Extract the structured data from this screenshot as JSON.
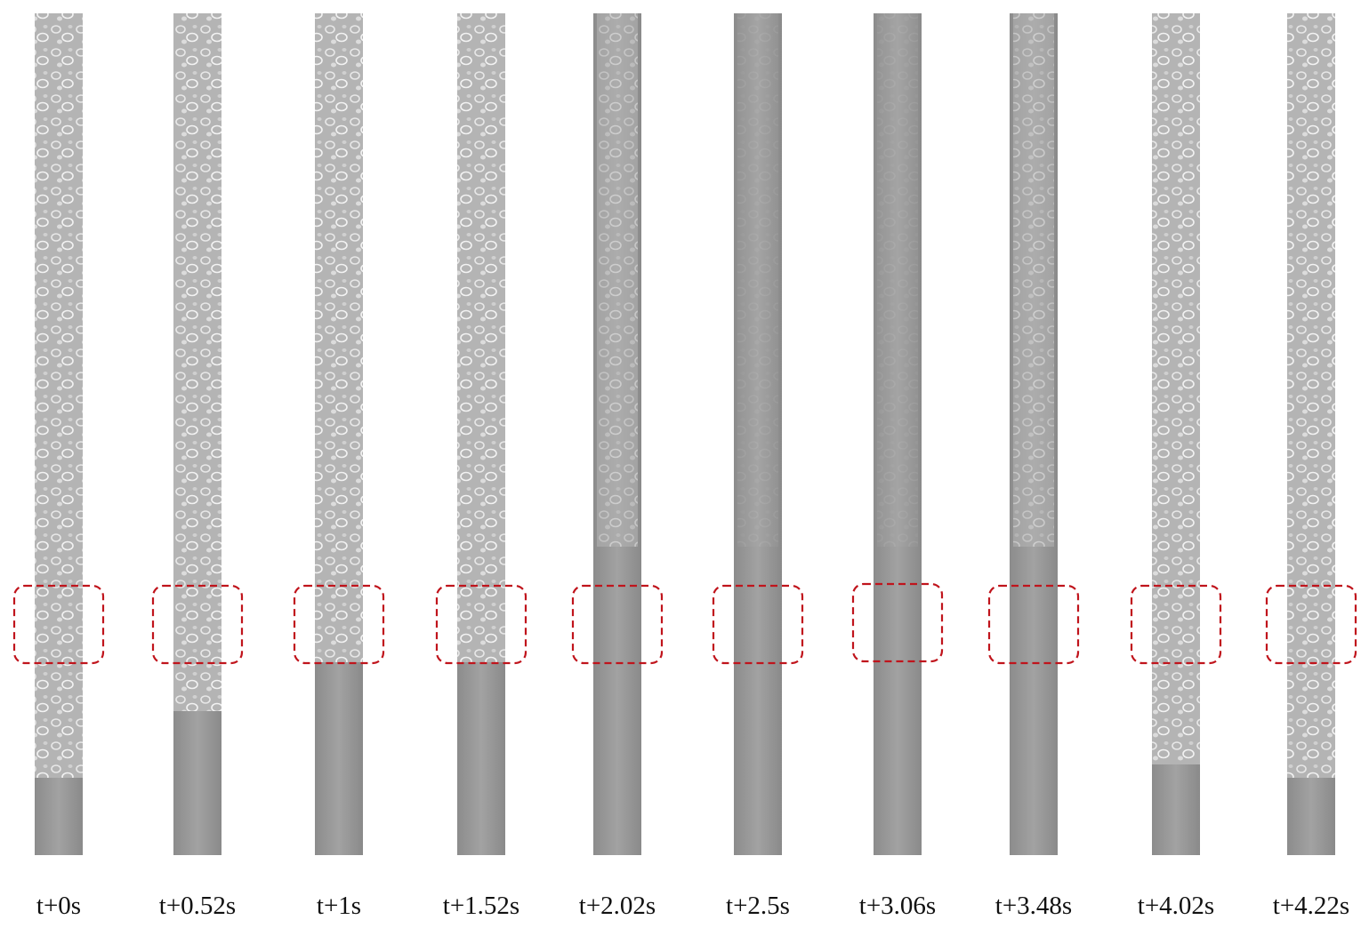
{
  "frames": [
    {
      "label": "t+0s"
    },
    {
      "label": "t+0.52s"
    },
    {
      "label": "t+1s"
    },
    {
      "label": "t+1.52s"
    },
    {
      "label": "t+2.02s"
    },
    {
      "label": "t+2.5s"
    },
    {
      "label": "t+3.06s"
    },
    {
      "label": "t+3.48s"
    },
    {
      "label": "t+4.02s"
    },
    {
      "label": "t+4.22s"
    }
  ]
}
